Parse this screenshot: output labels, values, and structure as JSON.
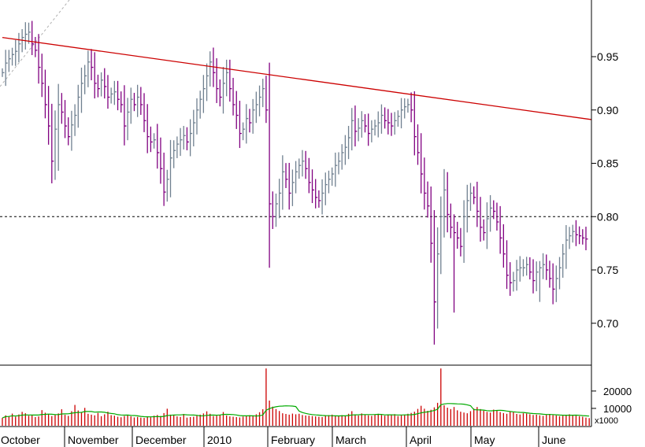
{
  "chart_data": [
    {
      "type": "ohlc",
      "x_ticks": [
        "October",
        "November",
        "December",
        "2010",
        "February",
        "March",
        "April",
        "May",
        "June"
      ],
      "y_ticks": [
        "0.95",
        "0.90",
        "0.85",
        "0.80",
        "0.75",
        "0.70"
      ],
      "y_tick_values": [
        0.95,
        0.9,
        0.85,
        0.8,
        0.75,
        0.7
      ],
      "ylim": [
        0.645,
        1.0
      ],
      "grid": false,
      "colors": {
        "up": "#708090",
        "down": "#800080",
        "trendline": "#cc0000",
        "reference": "#000000"
      },
      "reference_line": 0.8,
      "trendline": {
        "start": [
          0,
          0.968
        ],
        "end": [
          190,
          0.891
        ]
      },
      "close_series": [
        0.935,
        0.944,
        0.948,
        0.952,
        0.955,
        0.962,
        0.968,
        0.971,
        0.973,
        0.962,
        0.956,
        0.94,
        0.925,
        0.905,
        0.885,
        0.852,
        0.882,
        0.905,
        0.898,
        0.885,
        0.875,
        0.886,
        0.895,
        0.912,
        0.925,
        0.932,
        0.945,
        0.94,
        0.925,
        0.92,
        0.928,
        0.922,
        0.912,
        0.915,
        0.917,
        0.91,
        0.905,
        0.885,
        0.898,
        0.91,
        0.905,
        0.912,
        0.905,
        0.89,
        0.875,
        0.87,
        0.872,
        0.86,
        0.845,
        0.823,
        0.835,
        0.855,
        0.862,
        0.868,
        0.872,
        0.876,
        0.87,
        0.878,
        0.888,
        0.9,
        0.91,
        0.92,
        0.932,
        0.945,
        0.935,
        0.92,
        0.912,
        0.925,
        0.935,
        0.92,
        0.905,
        0.895,
        0.878,
        0.882,
        0.892,
        0.888,
        0.9,
        0.905,
        0.912,
        0.92,
        0.9,
        0.812,
        0.8,
        0.812,
        0.822,
        0.842,
        0.835,
        0.822,
        0.832,
        0.842,
        0.848,
        0.852,
        0.845,
        0.832,
        0.825,
        0.818,
        0.815,
        0.822,
        0.83,
        0.835,
        0.84,
        0.848,
        0.852,
        0.86,
        0.865,
        0.874,
        0.89,
        0.88,
        0.883,
        0.89,
        0.885,
        0.878,
        0.882,
        0.885,
        0.888,
        0.895,
        0.89,
        0.888,
        0.885,
        0.89,
        0.894,
        0.9,
        0.903,
        0.905,
        0.9,
        0.875,
        0.86,
        0.84,
        0.822,
        0.81,
        0.775,
        0.72,
        0.765,
        0.8,
        0.825,
        0.802,
        0.79,
        0.785,
        0.78,
        0.772,
        0.8,
        0.815,
        0.822,
        0.818,
        0.805,
        0.79,
        0.785,
        0.798,
        0.808,
        0.805,
        0.795,
        0.78,
        0.765,
        0.745,
        0.738,
        0.74,
        0.75,
        0.752,
        0.752,
        0.755,
        0.748,
        0.74,
        0.748,
        0.752,
        0.755,
        0.75,
        0.742,
        0.732,
        0.742,
        0.752,
        0.765,
        0.778,
        0.782,
        0.786,
        0.783,
        0.782,
        0.78,
        0.779
      ],
      "volume": {
        "y_ticks": [
          "20000",
          "10000"
        ],
        "y_tick_values": [
          20000,
          10000
        ],
        "unit_label": "x1000",
        "ylim": [
          0,
          34000
        ],
        "colors": {
          "bar": "#cc0000",
          "average": "#00aa00"
        },
        "values": [
          4500,
          6000,
          5500,
          7000,
          5200,
          6500,
          8000,
          7200,
          5800,
          6100,
          5000,
          5400,
          9000,
          7500,
          6800,
          5600,
          6200,
          7100,
          9500,
          6300,
          5700,
          8400,
          12000,
          8800,
          7600,
          10300,
          6900,
          6400,
          6000,
          7400,
          5500,
          6600,
          8100,
          6100,
          5800,
          5200,
          4900,
          5600,
          6300,
          5400,
          4800,
          5100,
          4700,
          4500,
          5200,
          4900,
          5800,
          6200,
          5600,
          7300,
          9800,
          6400,
          5900,
          5400,
          5100,
          6800,
          4700,
          5000,
          5200,
          5800,
          6400,
          7100,
          8300,
          6900,
          5600,
          5800,
          6100,
          7900,
          5900,
          5400,
          5200,
          5000,
          4800,
          5300,
          5500,
          6100,
          5800,
          6600,
          7800,
          9500,
          33000,
          14500,
          11000,
          9600,
          8500,
          7200,
          6800,
          6400,
          7000,
          6600,
          6900,
          6200,
          5900,
          5800,
          5600,
          5400,
          5200,
          5000,
          5800,
          6100,
          6400,
          5900,
          5600,
          6100,
          5800,
          6900,
          8400,
          6200,
          5900,
          7100,
          6300,
          6000,
          5700,
          6500,
          6900,
          6200,
          5800,
          6400,
          6100,
          6700,
          5600,
          6000,
          6300,
          6900,
          7400,
          8100,
          9700,
          11500,
          9800,
          8600,
          9200,
          10600,
          13200,
          33000,
          11800,
          10400,
          9600,
          10800,
          8900,
          8100,
          7600,
          7200,
          8400,
          9900,
          10800,
          9600,
          8700,
          8000,
          7600,
          9300,
          8700,
          7900,
          7300,
          6900,
          8100,
          7800,
          6800,
          6500,
          7200,
          7000,
          6600,
          6200,
          6400,
          6000,
          5700,
          6300,
          6800,
          6100,
          5900,
          5500,
          5800,
          6200,
          6600,
          6000,
          5800,
          5500,
          5200,
          4700,
          4400
        ]
      }
    }
  ]
}
